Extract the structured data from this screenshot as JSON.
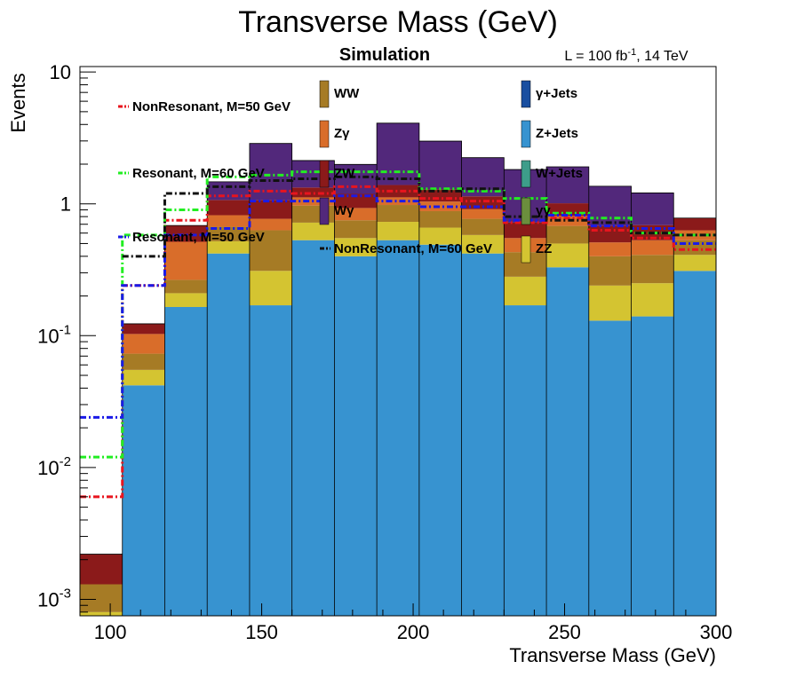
{
  "chart_data": {
    "type": "bar",
    "stacked": true,
    "title": "Transverse Mass (GeV)",
    "header_left": "Simulation",
    "header_right": {
      "pre": "L = 100 fb",
      "sup": "-1",
      "post": ", 14 TeV"
    },
    "xlabel": "Transverse Mass (GeV)",
    "ylabel": "Events",
    "xlim": [
      90,
      300
    ],
    "ylim": [
      0.00075,
      11
    ],
    "y_scale": "log",
    "grid": false,
    "x_ticks": [
      "100",
      "150",
      "200",
      "250",
      "300"
    ],
    "y_ticks": [
      {
        "base": "10",
        "exp": "-3"
      },
      {
        "base": "10",
        "exp": "-2"
      },
      {
        "base": "10",
        "exp": "-1"
      },
      {
        "base": "1",
        "exp": ""
      },
      {
        "base": "10",
        "exp": ""
      }
    ],
    "bin_edges": [
      90,
      104,
      118,
      132,
      146,
      160,
      174,
      188,
      202,
      216,
      230,
      244,
      258,
      272,
      286,
      300
    ],
    "stack": [
      {
        "name": "Z+Jets",
        "color": "#3793d0",
        "values": [
          0,
          0.042,
          0.165,
          0.42,
          0.17,
          0.53,
          0.4,
          0.53,
          0.49,
          0.42,
          0.17,
          0.33,
          0.13,
          0.14,
          0.31
        ]
      },
      {
        "name": "ZZ",
        "color": "#d4c431",
        "values": [
          0.0008,
          0.013,
          0.045,
          0.1,
          0.14,
          0.19,
          0.15,
          0.2,
          0.17,
          0.16,
          0.11,
          0.17,
          0.11,
          0.11,
          0.1
        ]
      },
      {
        "name": "WW",
        "color": "#a67b25",
        "values": [
          0.0005,
          0.018,
          0.055,
          0.15,
          0.32,
          0.25,
          0.2,
          0.25,
          0.22,
          0.19,
          0.15,
          0.18,
          0.16,
          0.16,
          0.12
        ]
      },
      {
        "name": "Zγ",
        "color": "#d96d2a",
        "values": [
          0,
          0.03,
          0.25,
          0.15,
          0.14,
          0.15,
          0.18,
          0.14,
          0.16,
          0.14,
          0.12,
          0.13,
          0.11,
          0.12,
          0.1
        ]
      },
      {
        "name": "ZW",
        "color": "#8b1a1a",
        "values": [
          0.0009,
          0.02,
          0.17,
          0.25,
          0.3,
          0.21,
          0.26,
          0.27,
          0.25,
          0.23,
          0.17,
          0.2,
          0.17,
          0.16,
          0.15
        ]
      },
      {
        "name": "Wγ",
        "color": "#52287b",
        "values": [
          0,
          0,
          0,
          0.4,
          1.8,
          0.8,
          0.8,
          2.7,
          1.7,
          1.1,
          1.1,
          0.9,
          0.68,
          0.52,
          0
        ]
      },
      {
        "name": "γ+Jets",
        "color": "#1a4fa0",
        "values": [
          0,
          0,
          0,
          0,
          0,
          0,
          0,
          0,
          0,
          0,
          0,
          0,
          0,
          0,
          0
        ]
      },
      {
        "name": "W+Jets",
        "color": "#3d9d8a",
        "values": [
          0,
          0,
          0,
          0,
          0,
          0,
          0,
          0,
          0,
          0,
          0,
          0,
          0,
          0,
          0
        ]
      },
      {
        "name": "γγ",
        "color": "#6b8e3d",
        "values": [
          0,
          0,
          0,
          0,
          0,
          0,
          0,
          0,
          0,
          0,
          0,
          0,
          0,
          0,
          0
        ]
      }
    ],
    "signals": [
      {
        "name": "NonResonant, M=50 GeV",
        "color": "#e8141e",
        "values": [
          0.006,
          0.24,
          0.75,
          1.15,
          1.25,
          1.2,
          1.35,
          1.25,
          1.1,
          1.05,
          0.72,
          0.78,
          0.63,
          0.55,
          0.45
        ]
      },
      {
        "name": "Resonant, M=60 GeV",
        "color": "#22ee22",
        "values": [
          0.012,
          0.58,
          0.9,
          1.6,
          1.65,
          1.75,
          1.75,
          1.75,
          1.3,
          1.25,
          1.1,
          0.85,
          0.78,
          0.6,
          0.58
        ]
      },
      {
        "name": "Resonant, M=50 GeV",
        "color": "#1a1ae8",
        "values": [
          0.024,
          0.24,
          0.58,
          0.65,
          1.05,
          1.05,
          1.15,
          1.05,
          0.95,
          0.95,
          0.75,
          0.82,
          0.68,
          0.65,
          0.5
        ]
      },
      {
        "name": "NonResonant, M=60 GeV",
        "color": "#111111",
        "values": [
          0,
          0.4,
          1.2,
          1.35,
          1.5,
          1.55,
          1.6,
          1.55,
          1.25,
          1.3,
          0.8,
          0.75,
          0.72,
          0.6,
          0.58
        ]
      }
    ],
    "legend": {
      "col1": [
        "NonResonant, M=50 GeV",
        "Resonant, M=60 GeV",
        "Resonant, M=50 GeV"
      ],
      "col2": [
        "WW",
        "Zγ",
        "ZW",
        "Wγ",
        "NonResonant, M=60 GeV"
      ],
      "col3": [
        "γ+Jets",
        "Z+Jets",
        "W+Jets",
        "γγ",
        "ZZ"
      ]
    }
  }
}
